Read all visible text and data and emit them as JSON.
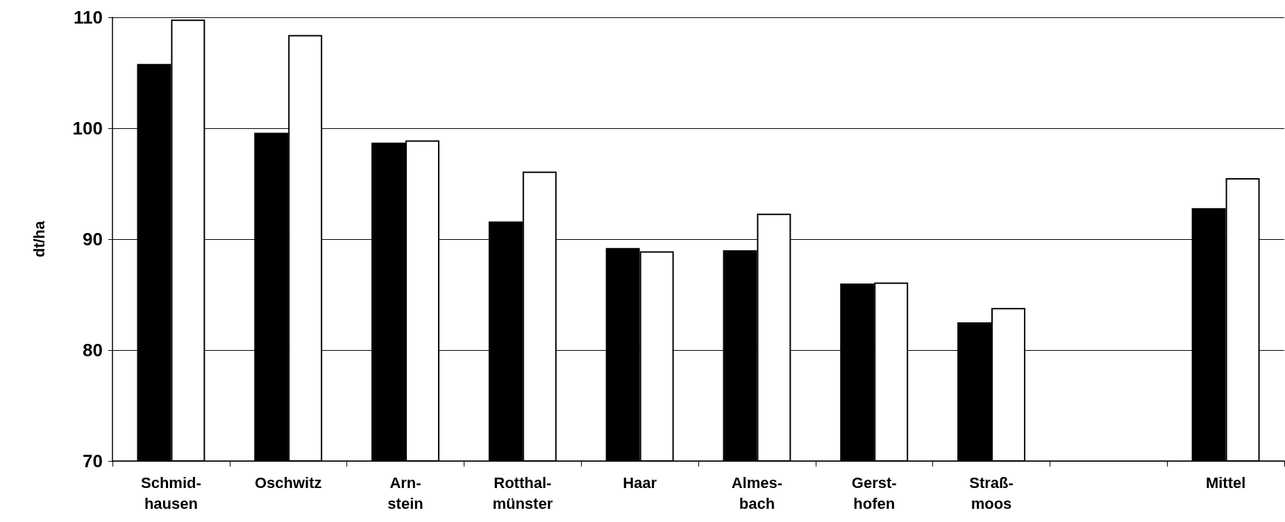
{
  "chart_data": {
    "type": "bar",
    "ylabel": "dt/ha",
    "categories": [
      "Schmid-\nhausen",
      "Oschwitz",
      "Arn-\nstein",
      "Rotthal-\nmünster",
      "Haar",
      "Almes-\nbach",
      "Gerst-\nhofen",
      "Straß-\nmoos",
      null,
      "Mittel"
    ],
    "series": [
      {
        "color": "#000000",
        "values": [
          105.8,
          99.6,
          98.7,
          91.6,
          89.2,
          89.0,
          86.0,
          82.5,
          null,
          92.8
        ]
      },
      {
        "color": "#ffffff",
        "values": [
          109.8,
          108.4,
          98.9,
          96.1,
          88.9,
          92.3,
          86.1,
          83.8,
          null,
          95.5
        ]
      }
    ],
    "ylim": [
      70,
      110
    ],
    "yticks": [
      70,
      80,
      90,
      100,
      110
    ],
    "grid": "y"
  }
}
